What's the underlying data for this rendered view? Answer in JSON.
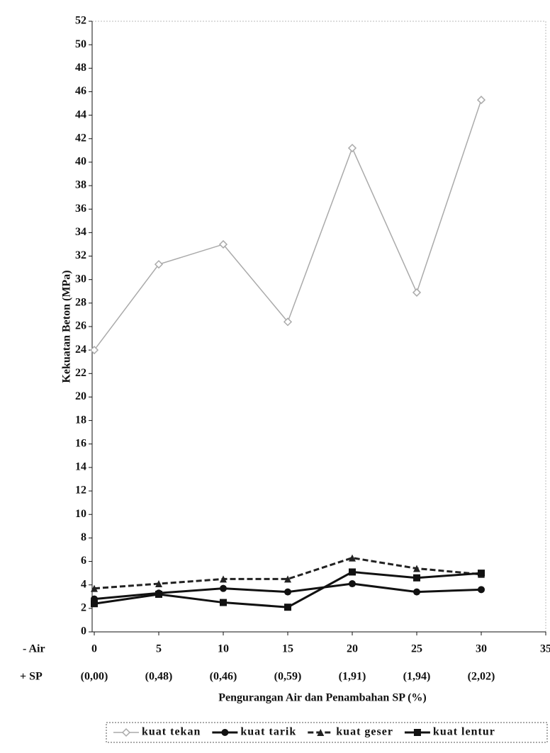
{
  "chart_data": {
    "type": "line",
    "x_axis_label": "Pengurangan Air dan Penambahan SP (%)",
    "y_axis_label": "Kekuatan Beton (MPa)",
    "x_row_label": "- Air",
    "sp_row_label": "+ SP",
    "sp_labels": [
      "(0,00)",
      "(0,48)",
      "(0,46)",
      "(0,59)",
      "(1,91)",
      "(1,94)",
      "(2,02)"
    ],
    "x": [
      0,
      5,
      10,
      15,
      20,
      25,
      30
    ],
    "series": [
      {
        "name": "kuat tekan",
        "color": "#aaaaaa",
        "marker": "diamond",
        "dash": false,
        "values": [
          24.0,
          31.3,
          33.0,
          26.4,
          41.2,
          28.9,
          45.3
        ]
      },
      {
        "name": "kuat tarik",
        "color": "#111111",
        "marker": "circle",
        "dash": false,
        "values": [
          2.8,
          3.3,
          3.7,
          3.4,
          4.1,
          3.4,
          3.6
        ]
      },
      {
        "name": "kuat geser",
        "color": "#222222",
        "marker": "triangle",
        "dash": true,
        "values": [
          3.7,
          4.1,
          4.5,
          4.5,
          6.3,
          5.4,
          4.9
        ]
      },
      {
        "name": "kuat lentur",
        "color": "#111111",
        "marker": "square",
        "dash": false,
        "values": [
          2.4,
          3.2,
          2.5,
          2.1,
          5.1,
          4.6,
          5.0
        ]
      }
    ],
    "xlim": [
      0,
      35
    ],
    "xticks": [
      0,
      5,
      10,
      15,
      20,
      25,
      30,
      35
    ],
    "ylim": [
      0,
      52
    ],
    "yticks": [
      0,
      2,
      4,
      6,
      8,
      10,
      12,
      14,
      16,
      18,
      20,
      22,
      24,
      26,
      28,
      30,
      32,
      34,
      36,
      38,
      40,
      42,
      44,
      46,
      48,
      50,
      52
    ]
  }
}
